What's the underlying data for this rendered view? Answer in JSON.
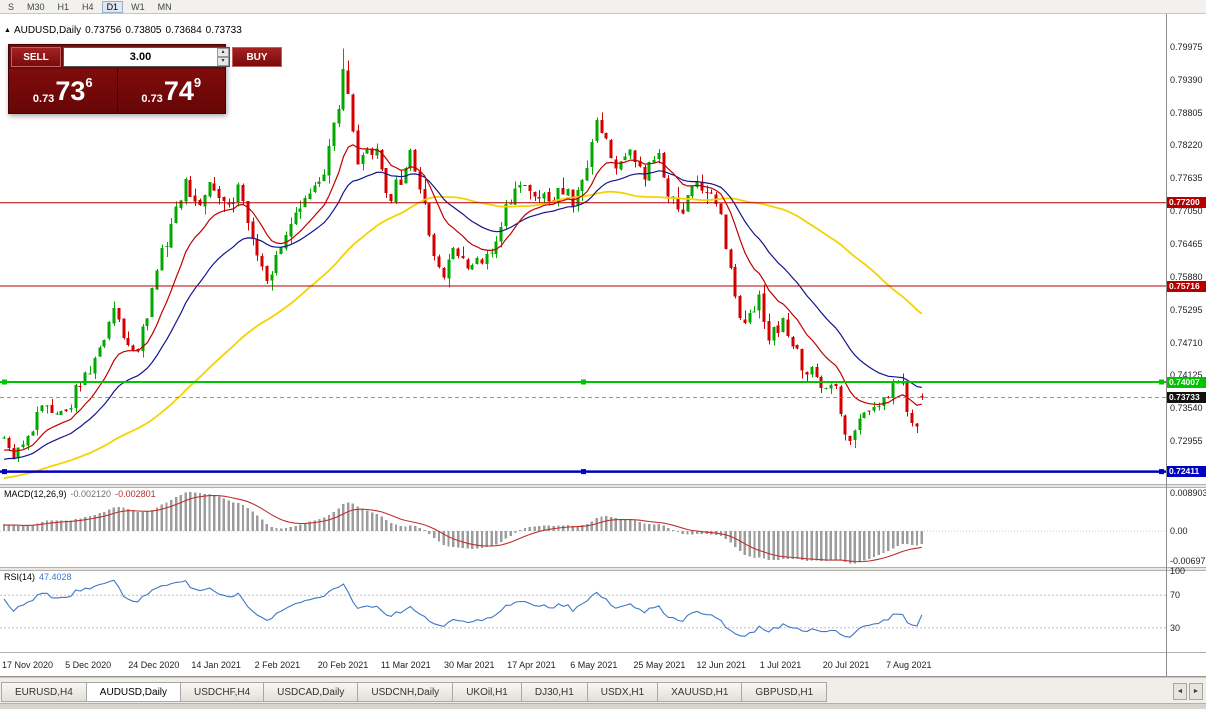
{
  "colors": {
    "bull": "#00a800",
    "bear": "#d40000",
    "ma_fast": "#c00000",
    "ma_mid": "#14148c",
    "ma_slow": "#f5d300",
    "macd_hist": "#9c9c9c",
    "macd_signal": "#c03030",
    "rsi_line": "#3c78c8",
    "level_red": "#b40000",
    "level_green": "#00c400",
    "level_blue": "#0000c0",
    "bid_badge": "#111111"
  },
  "icons": {
    "chart": "▲",
    "spin_up": "▴",
    "spin_down": "▾",
    "scroll_left": "◄",
    "scroll_right": "►"
  },
  "toolbar": {
    "periods": [
      {
        "label": "S",
        "active": false
      },
      {
        "label": "M30",
        "active": false
      },
      {
        "label": "H1",
        "active": false
      },
      {
        "label": "H4",
        "active": false
      },
      {
        "label": "D1",
        "active": true
      },
      {
        "label": "W1",
        "active": false
      },
      {
        "label": "MN",
        "active": false
      }
    ]
  },
  "chart_header": {
    "symbol": "AUDUSD,Daily",
    "open": "0.73756",
    "high": "0.73805",
    "low": "0.73684",
    "close": "0.73733"
  },
  "trade_panel": {
    "sell_label": "SELL",
    "buy_label": "BUY",
    "volume": "3.00",
    "sell_price": {
      "small": "0.73",
      "big": "73",
      "sup": "6"
    },
    "buy_price": {
      "small": "0.73",
      "big": "74",
      "sup": "9"
    }
  },
  "price_axis": {
    "labels": [
      "0.79975",
      "0.79390",
      "0.78805",
      "0.78220",
      "0.77635",
      "0.77050",
      "0.76465",
      "0.75880",
      "0.75295",
      "0.74710",
      "0.74125",
      "0.73540",
      "0.72955"
    ],
    "badges": [
      {
        "text": "0.77200",
        "value": 0.772,
        "type": "red"
      },
      {
        "text": "0.75716",
        "value": 0.75716,
        "type": "red"
      },
      {
        "text": "0.74007",
        "value": 0.74007,
        "type": "green"
      },
      {
        "text": "0.73733",
        "value": 0.73733,
        "type": "bid"
      },
      {
        "text": "0.72411",
        "value": 0.72411,
        "type": "blue"
      }
    ]
  },
  "macd_panel": {
    "label_name": "MACD(12,26,9)",
    "value_main": "-0.002120",
    "value_signal": "-0.002801",
    "scale": [
      {
        "text": "0.008903",
        "value": 0.008903
      },
      {
        "text": "0.00",
        "value": 0
      },
      {
        "text": "-0.00697",
        "value": -0.00697
      }
    ],
    "range": {
      "top": 0.0101,
      "bottom": -0.0084
    }
  },
  "rsi_panel": {
    "label_name": "RSI(14)",
    "value": "47.4028",
    "scale": [
      {
        "text": "100",
        "value": 100
      },
      {
        "text": "70",
        "value": 70
      },
      {
        "text": "30",
        "value": 30
      }
    ],
    "levels": [
      70,
      30
    ]
  },
  "date_axis": [
    "17 Nov 2020",
    "5 Dec 2020",
    "24 Dec 2020",
    "14 Jan 2021",
    "2 Feb 2021",
    "20 Feb 2021",
    "11 Mar 2021",
    "30 Mar 2021",
    "17 Apr 2021",
    "6 May 2021",
    "25 May 2021",
    "12 Jun 2021",
    "1 Jul 2021",
    "20 Jul 2021",
    "7 Aug 2021"
  ],
  "tabs": {
    "items": [
      {
        "label": "EURUSD,H4",
        "active": false
      },
      {
        "label": "AUDUSD,Daily",
        "active": true
      },
      {
        "label": "USDCHF,H4",
        "active": false
      },
      {
        "label": "USDCAD,Daily",
        "active": false
      },
      {
        "label": "USDCNH,Daily",
        "active": false
      },
      {
        "label": "UKOil,H1",
        "active": false
      },
      {
        "label": "DJ30,H1",
        "active": false
      },
      {
        "label": "USDX,H1",
        "active": false
      },
      {
        "label": "XAUUSD,H1",
        "active": false
      },
      {
        "label": "GBPUSD,H1",
        "active": false
      }
    ]
  },
  "chart_data": {
    "type": "candlestick",
    "symbol": "AUDUSD",
    "timeframe": "Daily",
    "visible_bars": 193,
    "price_scale": {
      "top": 0.8056,
      "bottom": 0.7219
    },
    "bid": 0.73733,
    "last_candle": {
      "o": 0.73756,
      "h": 0.73805,
      "l": 0.73684,
      "c": 0.73733
    },
    "spike": {
      "index": 71,
      "high": 0.7995
    },
    "seed": 5,
    "horizontal_levels": [
      {
        "price": 0.772,
        "color_key": "level_red",
        "width": 1,
        "selected": false
      },
      {
        "price": 0.75716,
        "color_key": "level_red",
        "width": 1,
        "selected": false
      },
      {
        "price": 0.74007,
        "color_key": "level_green",
        "width": 2,
        "selected": true
      },
      {
        "price": 0.72411,
        "color_key": "level_blue",
        "width": 2.5,
        "selected": true
      }
    ],
    "moving_averages": [
      {
        "type": "ema",
        "period": 12,
        "color_key": "ma_fast"
      },
      {
        "type": "ema",
        "period": 26,
        "color_key": "ma_mid"
      },
      {
        "type": "sma",
        "period": 60,
        "color_key": "ma_slow"
      }
    ],
    "indicators": {
      "macd": {
        "fast": 12,
        "slow": 26,
        "signal": 9
      },
      "rsi": {
        "period": 14
      }
    },
    "pre_anchors": [
      [
        -70,
        0.716
      ],
      [
        -35,
        0.7215
      ]
    ],
    "anchors": [
      [
        0,
        0.729
      ],
      [
        2,
        0.7262
      ],
      [
        5,
        0.73
      ],
      [
        9,
        0.7368
      ],
      [
        13,
        0.734
      ],
      [
        16,
        0.7405
      ],
      [
        20,
        0.7455
      ],
      [
        23,
        0.753
      ],
      [
        25,
        0.748
      ],
      [
        28,
        0.7452
      ],
      [
        32,
        0.76
      ],
      [
        35,
        0.768
      ],
      [
        38,
        0.7755
      ],
      [
        41,
        0.7718
      ],
      [
        44,
        0.776
      ],
      [
        47,
        0.77
      ],
      [
        49,
        0.7748
      ],
      [
        52,
        0.7655
      ],
      [
        55,
        0.758
      ],
      [
        58,
        0.765
      ],
      [
        61,
        0.77
      ],
      [
        64,
        0.774
      ],
      [
        67,
        0.778
      ],
      [
        69,
        0.785
      ],
      [
        71,
        0.796
      ],
      [
        72,
        0.79
      ],
      [
        74,
        0.779
      ],
      [
        76,
        0.7825
      ],
      [
        78,
        0.78
      ],
      [
        81,
        0.773
      ],
      [
        83,
        0.776
      ],
      [
        85,
        0.782
      ],
      [
        87,
        0.775
      ],
      [
        90,
        0.762
      ],
      [
        92,
        0.758
      ],
      [
        94,
        0.765
      ],
      [
        97,
        0.76
      ],
      [
        100,
        0.7612
      ],
      [
        103,
        0.766
      ],
      [
        106,
        0.773
      ],
      [
        109,
        0.7762
      ],
      [
        111,
        0.774
      ],
      [
        114,
        0.7718
      ],
      [
        117,
        0.7732
      ],
      [
        119,
        0.772
      ],
      [
        122,
        0.779
      ],
      [
        124,
        0.7868
      ],
      [
        126,
        0.783
      ],
      [
        128,
        0.778
      ],
      [
        131,
        0.78
      ],
      [
        134,
        0.778
      ],
      [
        137,
        0.7792
      ],
      [
        139,
        0.773
      ],
      [
        142,
        0.7718
      ],
      [
        145,
        0.776
      ],
      [
        147,
        0.7742
      ],
      [
        150,
        0.77
      ],
      [
        153,
        0.756
      ],
      [
        155,
        0.75
      ],
      [
        158,
        0.7552
      ],
      [
        160,
        0.748
      ],
      [
        163,
        0.7502
      ],
      [
        166,
        0.745
      ],
      [
        168,
        0.7422
      ],
      [
        171,
        0.74
      ],
      [
        174,
        0.7392
      ],
      [
        176,
        0.73
      ],
      [
        178,
        0.7322
      ],
      [
        180,
        0.734
      ],
      [
        183,
        0.7362
      ],
      [
        186,
        0.739
      ],
      [
        188,
        0.7402
      ],
      [
        190,
        0.732
      ],
      [
        192,
        0.7342
      ],
      [
        193,
        0.73733
      ]
    ]
  }
}
